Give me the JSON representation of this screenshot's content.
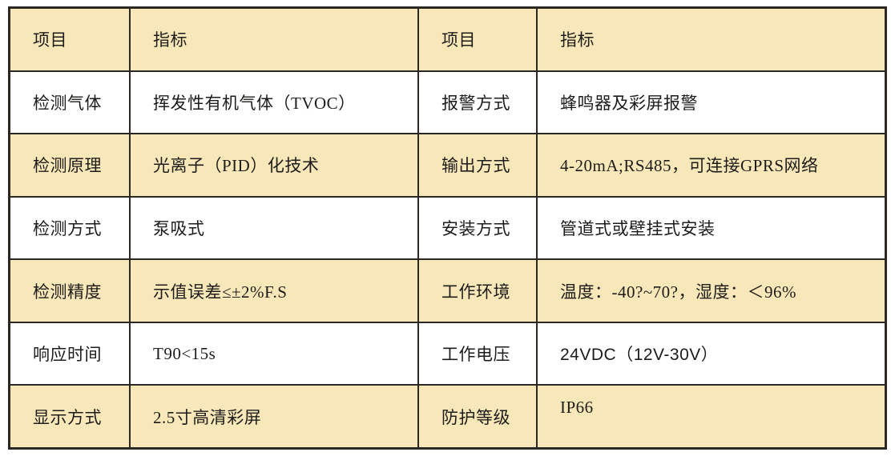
{
  "table": {
    "title_semantic": "product-specification-table",
    "header": {
      "item_left": "项目",
      "spec_left": "指标",
      "item_right": "项目",
      "spec_right": "指标"
    },
    "rows": [
      {
        "item_left": "检测气体",
        "spec_left": "挥发性有机气体（TVOC）",
        "item_right": "报警方式",
        "spec_right": "蜂鸣器及彩屏报警"
      },
      {
        "item_left": "检测原理",
        "spec_left": "光离子（PID）化技术",
        "item_right": "输出方式",
        "spec_right": "4-20mA;RS485，可连接GPRS网络"
      },
      {
        "item_left": "检测方式",
        "spec_left": "泵吸式",
        "item_right": "安装方式",
        "spec_right": "管道式或壁挂式安装"
      },
      {
        "item_left": "检测精度",
        "spec_left": "示值误差≤±2%F.S",
        "item_right": "工作环境",
        "spec_right": "温度：-40?~70?，湿度：＜96%"
      },
      {
        "item_left": "响应时间",
        "spec_left": "T90<15s",
        "item_right": "工作电压",
        "spec_right": "24VDC（12V-30V）"
      },
      {
        "item_left": "显示方式",
        "spec_left": "2.5寸高清彩屏",
        "item_right": "防护等级",
        "spec_right": "IP66"
      }
    ],
    "colors": {
      "band_background": "#f8e7b8",
      "row_background": "#ffffff",
      "border": "#2b2722",
      "text": "#1d1c1a"
    }
  }
}
